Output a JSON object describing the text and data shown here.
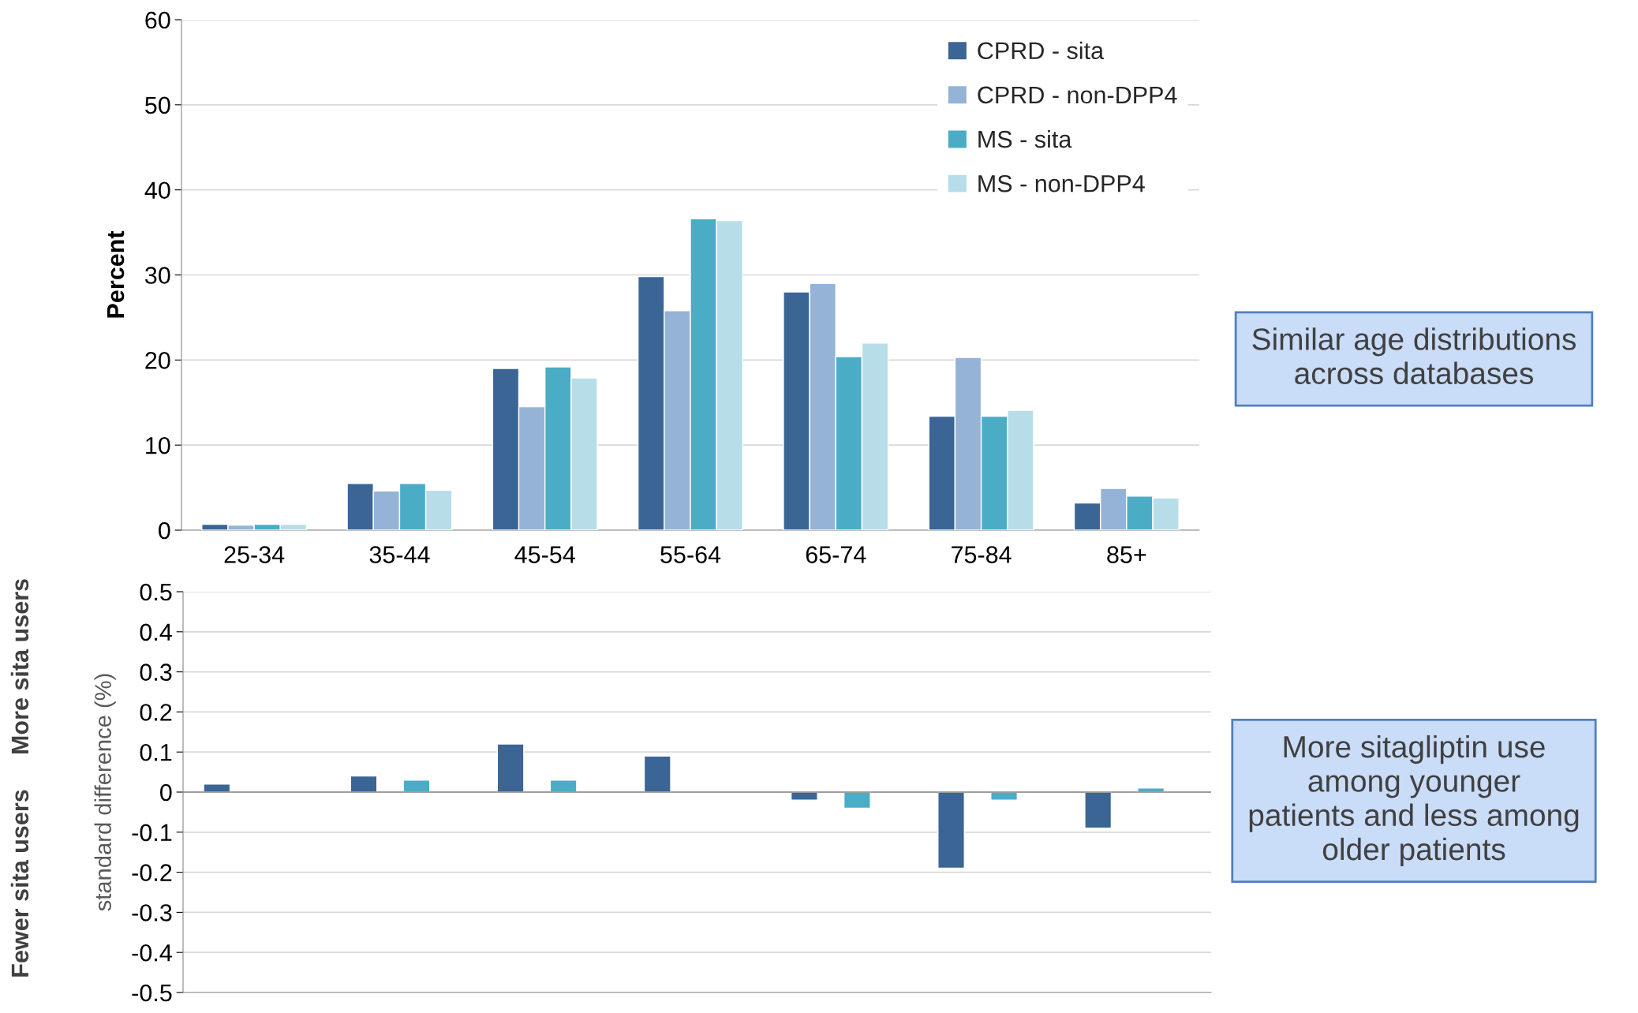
{
  "chart_data": [
    {
      "type": "bar",
      "ylabel": "Percent",
      "categories": [
        "25-34",
        "35-44",
        "45-54",
        "55-64",
        "65-74",
        "75-84",
        "85+"
      ],
      "series": [
        {
          "name": "CPRD - sita",
          "color": "#3a6595",
          "values": [
            0.7,
            5.5,
            19.0,
            29.8,
            28.0,
            13.4,
            3.2
          ]
        },
        {
          "name": "CPRD - non-DPP4",
          "color": "#95b3d7",
          "values": [
            0.6,
            4.6,
            14.5,
            25.8,
            29.0,
            20.3,
            4.9
          ]
        },
        {
          "name": "MS - sita",
          "color": "#4bacc6",
          "values": [
            0.7,
            5.5,
            19.2,
            36.6,
            20.4,
            13.4,
            4.0
          ]
        },
        {
          "name": "MS - non-DPP4",
          "color": "#b7dee8",
          "values": [
            0.7,
            4.7,
            17.9,
            36.4,
            22.0,
            14.1,
            3.8
          ]
        }
      ],
      "ylim": [
        0,
        60
      ],
      "yticks": [
        0,
        10,
        20,
        30,
        40,
        50,
        60
      ],
      "grid": "y",
      "legend": "top right",
      "annotations": [
        "Similar age distributions\nacross databases"
      ]
    },
    {
      "type": "bar",
      "ylabel": "standard difference (%)",
      "categories": [
        null,
        null,
        null,
        null,
        null,
        null,
        null
      ],
      "series": [
        {
          "color": "#3a6595",
          "values": [
            0.02,
            0.04,
            0.12,
            0.09,
            -0.02,
            -0.19,
            -0.09
          ]
        },
        {
          "color": "#4bacc6",
          "values": [
            null,
            0.03,
            0.03,
            null,
            -0.04,
            -0.02,
            0.01
          ]
        }
      ],
      "ylim": [
        -0.5,
        0.5
      ],
      "yticks": [
        -0.5,
        -0.4,
        -0.3,
        -0.2,
        -0.1,
        0,
        0.1,
        0.2,
        0.3,
        0.4,
        0.5
      ],
      "grid": "y",
      "tick_labels": "y",
      "annotations": [
        "More sitagliptin use\namong younger\npatients and less among\nolder patients",
        "More sita users",
        "Fewer sita users"
      ]
    }
  ]
}
